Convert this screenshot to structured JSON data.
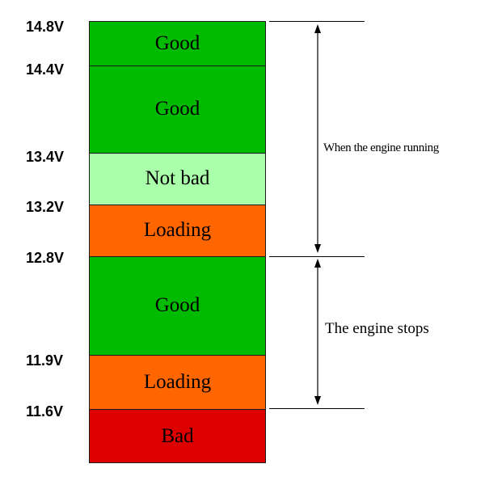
{
  "voltage_labels": [
    "14.8V",
    "14.4V",
    "13.4V",
    "13.2V",
    "12.8V",
    "11.9V",
    "11.6V"
  ],
  "segments": [
    {
      "label": "Good",
      "color": "#00bb00"
    },
    {
      "label": "Good",
      "color": "#00bb00"
    },
    {
      "label": "Not bad",
      "color": "#aaffaa"
    },
    {
      "label": "Loading",
      "color": "#ff6600"
    },
    {
      "label": "Good",
      "color": "#00bb00"
    },
    {
      "label": "Loading",
      "color": "#ff6600"
    },
    {
      "label": "Bad",
      "color": "#dd0000"
    }
  ],
  "annotations": {
    "engine_running": "When the engine running",
    "engine_stops": "The engine stops"
  }
}
